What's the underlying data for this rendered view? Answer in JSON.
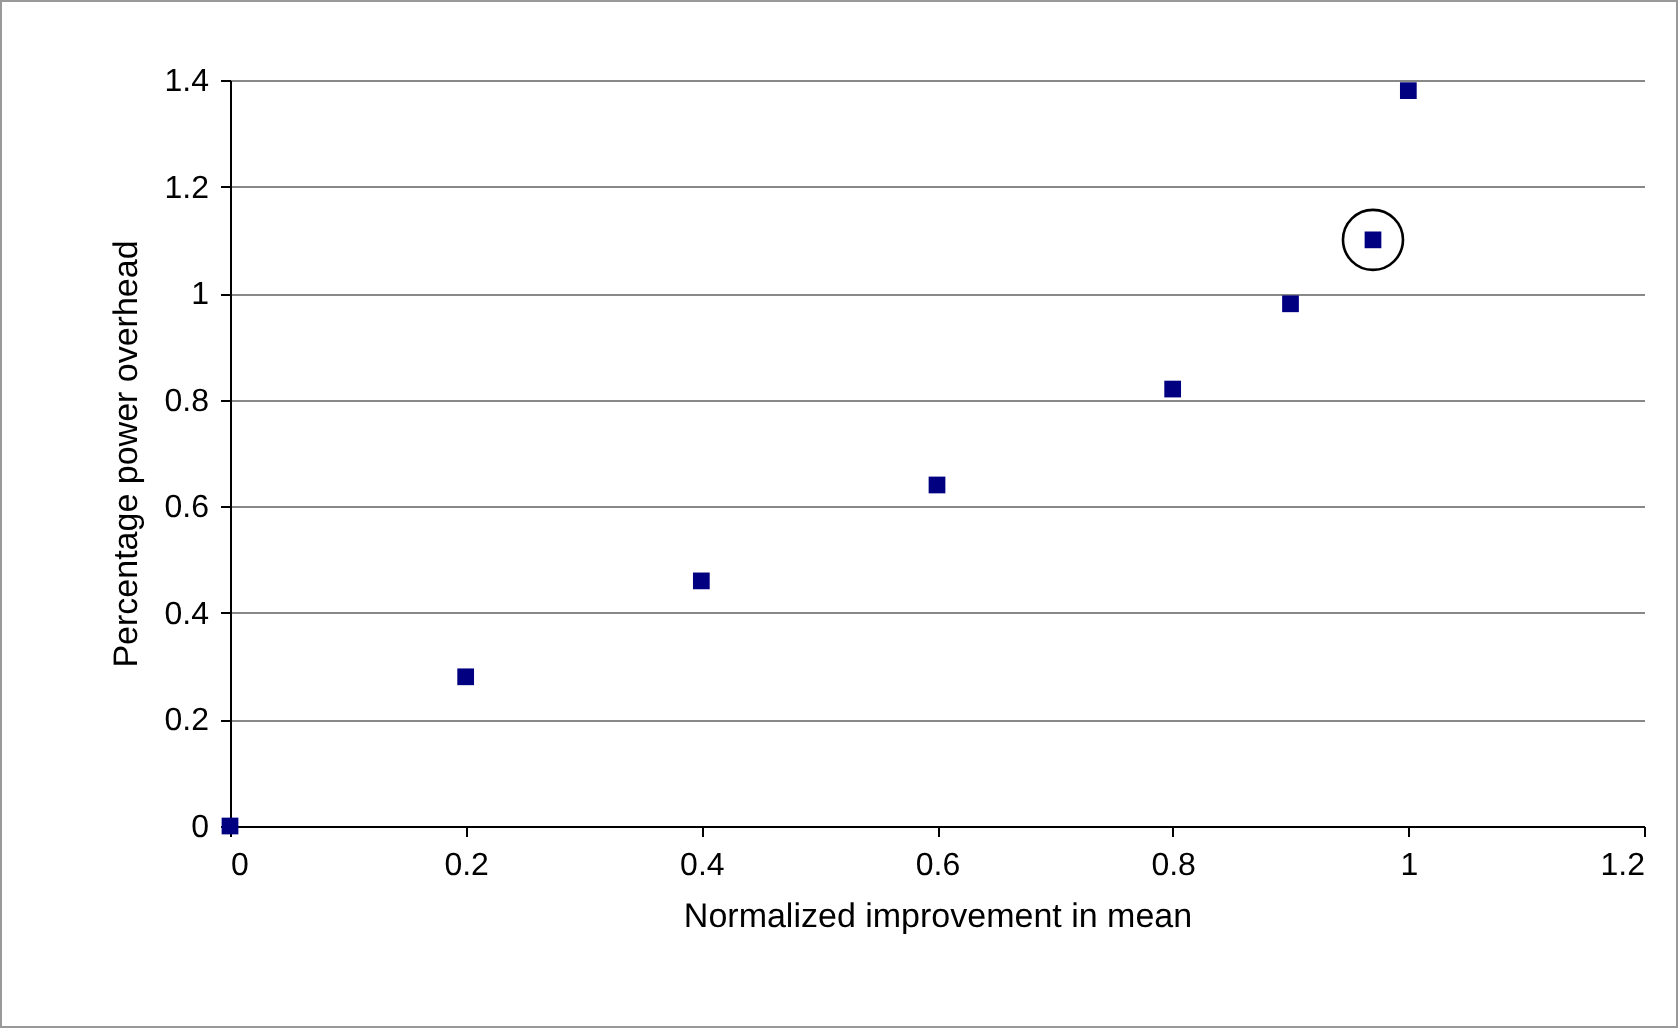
{
  "chart_data": {
    "type": "scatter",
    "xlabel": "Normalized improvement in mean",
    "ylabel": "Percentage power overhead",
    "x": [
      0,
      0.2,
      0.4,
      0.6,
      0.8,
      0.9,
      0.97,
      1.0
    ],
    "series": [
      {
        "color": "#000080",
        "values": [
          0,
          0.28,
          0.46,
          0.64,
          0.82,
          0.98,
          1.1,
          1.38
        ]
      }
    ],
    "xlim": [
      0,
      1.2
    ],
    "xticks": [
      0,
      0.2,
      0.4,
      0.6,
      0.8,
      1,
      1.2
    ],
    "ylim": [
      0,
      1.4
    ],
    "yticks": [
      0,
      0.2,
      0.4,
      0.6,
      0.8,
      1,
      1.2,
      1.4
    ],
    "grid": "y",
    "marker": "square",
    "legend": false
  }
}
